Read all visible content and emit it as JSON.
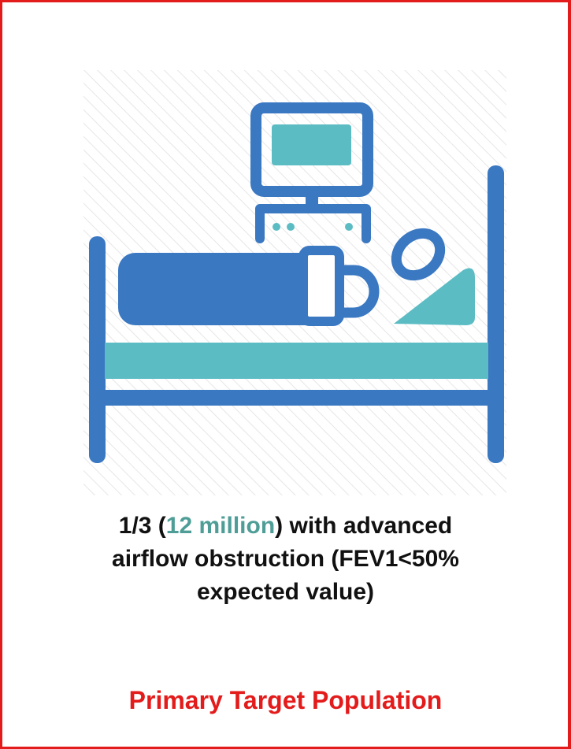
{
  "caption": {
    "line1": {
      "before": "1/3 (",
      "highlight": "12 million",
      "after": ") with advanced"
    },
    "line2": "airflow obstruction (FEV1<50%",
    "line3": "expected value)"
  },
  "footer": "Primary Target Population"
}
